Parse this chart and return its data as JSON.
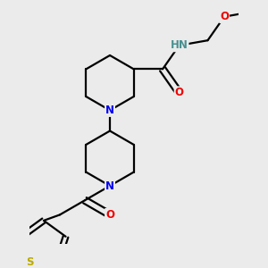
{
  "bg_color": "#ebebeb",
  "atom_colors": {
    "N": "#0000ee",
    "O": "#ee0000",
    "S": "#bbaa00",
    "C": "#000000",
    "H": "#4a9090"
  },
  "bond_color": "#000000",
  "bond_width": 1.6,
  "font_size_atom": 8.5
}
